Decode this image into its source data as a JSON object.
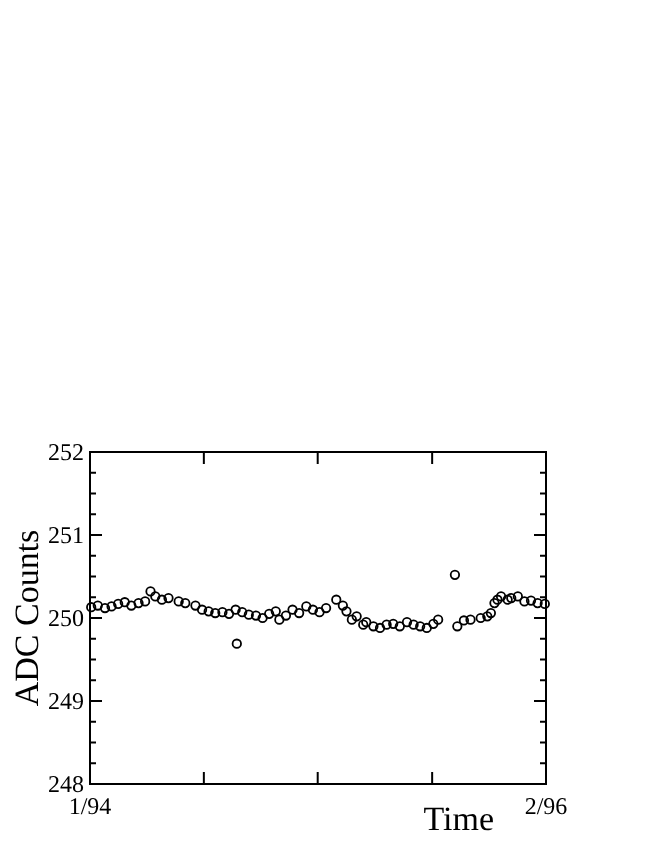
{
  "chart_data": {
    "type": "scatter",
    "xlabel": "Time",
    "ylabel": "ADC Counts",
    "marker": "circle",
    "xlim": [
      "1994-01",
      "1996-02"
    ],
    "ylim": [
      248,
      252
    ],
    "xticks": [
      {
        "value": "1994-01",
        "label": "1/94"
      },
      {
        "value": "1994-07-10",
        "label": null
      },
      {
        "value": "1995-01-16",
        "label": null
      },
      {
        "value": "1995-07-26",
        "label": null
      },
      {
        "value": "1996-02",
        "label": "2/96"
      }
    ],
    "yticks": [
      248,
      {
        "value": 248.25,
        "label": null
      },
      {
        "value": 248.5,
        "label": null
      },
      {
        "value": 248.75,
        "label": null
      },
      249,
      {
        "value": 249.25,
        "label": null
      },
      {
        "value": 249.5,
        "label": null
      },
      {
        "value": 249.75,
        "label": null
      },
      250,
      {
        "value": 250.25,
        "label": null
      },
      {
        "value": 250.5,
        "label": null
      },
      {
        "value": 250.75,
        "label": null
      },
      251,
      {
        "value": 251.25,
        "label": null
      },
      {
        "value": 251.5,
        "label": null
      },
      {
        "value": 251.75,
        "label": null
      },
      252
    ],
    "series": [
      {
        "color": "#000000",
        "x": [
          "1994-01-03",
          "1994-01-14",
          "1994-01-26",
          "1994-02-06",
          "1994-02-17",
          "1994-02-28",
          "1994-03-11",
          "1994-03-23",
          "1994-04-03",
          "1994-04-12",
          "1994-04-20",
          "1994-05-01",
          "1994-05-12",
          "1994-05-29",
          "1994-06-09",
          "1994-06-26",
          "1994-07-07",
          "1994-07-18",
          "1994-07-29",
          "1994-08-10",
          "1994-08-21",
          "1994-09-01",
          "1994-09-03",
          "1994-09-12",
          "1994-09-23",
          "1994-10-05",
          "1994-10-16",
          "1994-10-27",
          "1994-11-07",
          "1994-11-13",
          "1994-11-24",
          "1994-12-05",
          "1994-12-16",
          "1994-12-28",
          "1995-01-08",
          "1995-01-19",
          "1995-01-30",
          "1995-02-16",
          "1995-02-27",
          "1995-03-05",
          "1995-03-14",
          "1995-03-22",
          "1995-04-02",
          "1995-04-07",
          "1995-04-19",
          "1995-04-30",
          "1995-05-11",
          "1995-05-22",
          "1995-06-02",
          "1995-06-14",
          "1995-06-25",
          "1995-07-06",
          "1995-07-17",
          "1995-07-28",
          "1995-08-05",
          "1995-09-02",
          "1995-09-06",
          "1995-09-17",
          "1995-09-28",
          "1995-10-15",
          "1995-10-26",
          "1995-11-01",
          "1995-11-07",
          "1995-11-12",
          "1995-11-18",
          "1995-11-29",
          "1995-12-05",
          "1995-12-16",
          "1995-12-27",
          "1996-01-07",
          "1996-01-18",
          "1996-01-30"
        ],
        "values": [
          250.13,
          250.15,
          250.12,
          250.14,
          250.17,
          250.19,
          250.15,
          250.18,
          250.2,
          250.32,
          250.26,
          250.22,
          250.24,
          250.2,
          250.18,
          250.15,
          250.1,
          250.08,
          250.06,
          250.07,
          250.05,
          250.1,
          249.69,
          250.07,
          250.04,
          250.03,
          250.0,
          250.05,
          250.08,
          249.98,
          250.03,
          250.1,
          250.06,
          250.14,
          250.1,
          250.07,
          250.12,
          250.22,
          250.15,
          250.08,
          249.98,
          250.02,
          249.92,
          249.95,
          249.9,
          249.88,
          249.92,
          249.93,
          249.9,
          249.95,
          249.92,
          249.9,
          249.88,
          249.93,
          249.98,
          250.52,
          249.9,
          249.97,
          249.98,
          250.0,
          250.02,
          250.06,
          250.18,
          250.22,
          250.26,
          250.22,
          250.24,
          250.26,
          250.2,
          250.21,
          250.18,
          250.17
        ]
      }
    ]
  }
}
